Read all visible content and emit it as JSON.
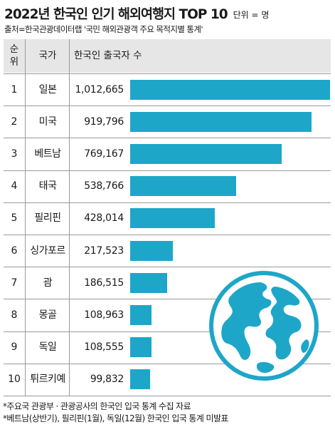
{
  "header": {
    "title": "2022년 한국인 인기 해외여행지 TOP 10",
    "unit": "단위 = 명",
    "source": "출처=한국관광데이터랩 '국민 해외관광객 주요 목적지별 통계'"
  },
  "table": {
    "col_rank": "순위",
    "col_country": "국가",
    "col_count": "한국인 출국자 수"
  },
  "colors": {
    "bar": "#1ea6c8",
    "globe": "#1ea6c8",
    "header_bg": "#e6e6e6"
  },
  "chart_data": {
    "type": "bar",
    "orientation": "horizontal",
    "categories": [
      "일본",
      "미국",
      "베트남",
      "태국",
      "필리핀",
      "싱가포르",
      "괌",
      "몽골",
      "독일",
      "튀르키예"
    ],
    "ranks": [
      "1",
      "2",
      "3",
      "4",
      "5",
      "6",
      "7",
      "8",
      "9",
      "10"
    ],
    "value_labels": [
      "1,012,665",
      "919,796",
      "769,167",
      "538,766",
      "428,014",
      "217,523",
      "186,515",
      "108,963",
      "108,555",
      "99,832"
    ],
    "values": [
      1012665,
      919796,
      769167,
      538766,
      428014,
      217523,
      186515,
      108963,
      108555,
      99832
    ],
    "xlim": [
      0,
      1012665
    ],
    "grid": false,
    "legend": "none"
  },
  "footnotes": [
    "*주요국 관광부 · 관광공사의 한국인 입국 통계 수집 자료",
    "*베트남(상반기), 필리핀(1월), 독일(12월) 한국인 입국 통계 미발표"
  ],
  "icons": {
    "globe": "globe-icon"
  }
}
